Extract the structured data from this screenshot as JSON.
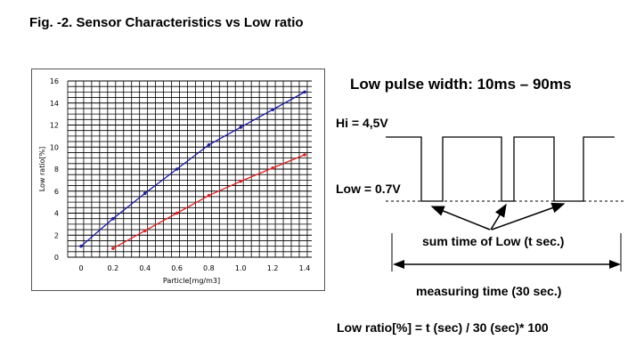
{
  "figure": {
    "title": "Fig. -2. Sensor Characteristics vs Low ratio"
  },
  "chart_data": {
    "type": "line",
    "xlabel": "Particle[mg/m3]",
    "ylabel": "Low ratio[%]",
    "xlim": [
      0,
      1.4
    ],
    "ylim": [
      0,
      16
    ],
    "x_ticks": [
      "0",
      "0.2",
      "0.4",
      "0.6",
      "0.8",
      "1.0",
      "1.2",
      "1.4"
    ],
    "y_ticks": [
      "0",
      "2",
      "4",
      "6",
      "8",
      "10",
      "12",
      "14",
      "16"
    ],
    "grid": true,
    "series": [
      {
        "color": "#1a1aa6",
        "points": [
          [
            0,
            1.0
          ],
          [
            0.2,
            3.5
          ],
          [
            0.4,
            5.8
          ],
          [
            0.6,
            8.0
          ],
          [
            0.8,
            10.2
          ],
          [
            1.0,
            11.8
          ],
          [
            1.2,
            13.4
          ],
          [
            1.4,
            15.0
          ]
        ]
      },
      {
        "color": "#e02020",
        "points": [
          [
            0.2,
            0.8
          ],
          [
            0.4,
            2.4
          ],
          [
            0.6,
            4.0
          ],
          [
            0.8,
            5.6
          ],
          [
            1.0,
            6.9
          ],
          [
            1.2,
            8.1
          ],
          [
            1.4,
            9.3
          ]
        ]
      }
    ]
  },
  "diagram": {
    "pulse_width": "Low pulse width: 10ms – 90ms",
    "hi_label": "Hi = 4,5V",
    "low_label": "Low = 0.7V",
    "sum_label": "sum time of Low (t sec.)",
    "measuring_label": "measuring time (30 sec.)",
    "formula": "Low ratio[%] =   t (sec) / 30 (sec)* 100"
  }
}
